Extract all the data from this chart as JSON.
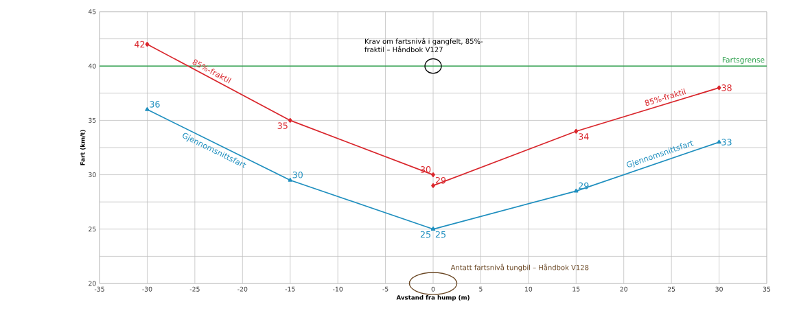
{
  "chart_data": {
    "type": "line",
    "xlabel": "Avstand fra hump (m)",
    "ylabel": "Fart (km/t)",
    "xlim": [
      -35,
      35
    ],
    "xticks": [
      -35,
      -30,
      -25,
      -20,
      -15,
      -10,
      -5,
      0,
      5,
      10,
      15,
      20,
      25,
      30,
      35
    ],
    "ylim": [
      20,
      45
    ],
    "yticks": [
      20,
      {
        "value": 22.5,
        "label": null
      },
      25,
      {
        "value": 27.5,
        "label": null
      },
      30,
      {
        "value": 32.5,
        "label": null
      },
      35,
      {
        "value": 37.5,
        "label": null
      },
      40,
      {
        "value": 42.5,
        "label": null
      },
      45
    ],
    "grid": true,
    "series": [
      {
        "name": "85%-fraktil",
        "color": "#d9262c",
        "marker": "diamond",
        "x": [
          -30,
          -15,
          0
        ],
        "values": [
          42,
          35,
          30
        ],
        "value_labels": [
          "42",
          "35",
          "30"
        ]
      },
      {
        "name": "85%-fraktil",
        "color": "#d9262c",
        "marker": "diamond",
        "x": [
          0,
          15,
          30
        ],
        "values": [
          29,
          34,
          38
        ],
        "value_labels": [
          "29",
          "34",
          "38"
        ]
      },
      {
        "name": "Gjennomsnittsfart",
        "color": "#1f8fbf",
        "marker": "triangle",
        "x": [
          -30,
          -15,
          0
        ],
        "values": [
          36,
          29.5,
          25
        ],
        "value_labels": [
          "36",
          "30",
          "25"
        ]
      },
      {
        "name": "Gjennomsnittsfart",
        "color": "#1f8fbf",
        "marker": "triangle",
        "x": [
          0,
          15,
          30
        ],
        "values": [
          25,
          28.5,
          33
        ],
        "value_labels": [
          "25",
          "29",
          "33"
        ]
      }
    ],
    "ref_lines": [
      {
        "axis": "y",
        "value": 40,
        "label": "Fartsgrense",
        "color": "#2ca04c"
      }
    ],
    "annotations": [
      {
        "text": "Krav om fartsnivå i gangfelt, 85%-fraktil – Håndbok V127",
        "x": 0,
        "y": 40
      },
      "Antatt fartsnivå tungbil – Håndbok V128"
    ]
  }
}
